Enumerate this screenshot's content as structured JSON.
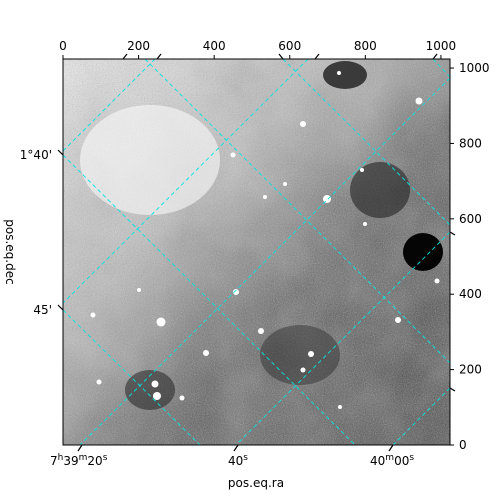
{
  "chart_data": {
    "type": "heatmap",
    "xlabel": "pos.eq.ra",
    "ylabel": "pos.eq.dec",
    "pixel_axes": {
      "xlim": [
        0,
        1024
      ],
      "ylim": [
        0,
        1024
      ],
      "ticks": [
        0,
        200,
        400,
        600,
        800,
        1000
      ]
    },
    "ra_ticks": [
      {
        "x": 50,
        "label_main": "7",
        "sup1": "h",
        "mid": "39",
        "sup2": "m",
        "end": "20",
        "sup3": "s"
      },
      {
        "x": 460,
        "label_main": "40",
        "sup1": "s",
        "mid": "",
        "sup2": "",
        "end": "",
        "sup3": ""
      },
      {
        "x": 875,
        "label_main": "40",
        "sup1": "m",
        "mid": "00",
        "sup2": "s",
        "end": "",
        "sup3": ""
      }
    ],
    "dec_ticks": [
      {
        "y": 775,
        "label": "1°40'"
      },
      {
        "y": 360,
        "label": "45'"
      }
    ],
    "grid": true,
    "grid_color": "#00e5e5",
    "image": "grayscale astronomical field, white = bright, black = dark; brighter upper-left, dark patch at right"
  }
}
